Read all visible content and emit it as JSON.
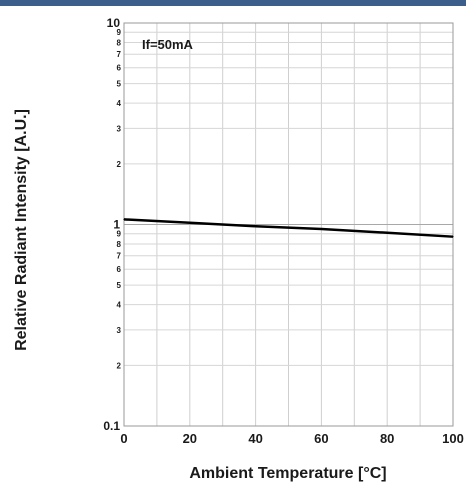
{
  "header_bar_color": "#3b5f8a",
  "chart_data": {
    "type": "line",
    "title": "",
    "xlabel": "Ambient Temperature [°C]",
    "ylabel": "Relative Radiant Intensity [A.U.]",
    "annotation": "If=50mA",
    "x_scale": "linear",
    "y_scale": "log",
    "xlim": [
      0,
      100
    ],
    "ylim": [
      0.1,
      10
    ],
    "grid": true,
    "x_ticks": [
      0,
      20,
      40,
      60,
      80,
      100
    ],
    "x_tick_labels": [
      "0",
      "20",
      "40",
      "60",
      "80",
      "100"
    ],
    "y_major_ticks": [
      0.1,
      1,
      10
    ],
    "y_major_labels": [
      "0.1",
      "1",
      "10"
    ],
    "y_minor_ticks": [
      0.2,
      0.3,
      0.4,
      0.5,
      0.6,
      0.7,
      0.8,
      0.9,
      2,
      3,
      4,
      5,
      6,
      7,
      8,
      9
    ],
    "y_minor_labels": [
      "2",
      "3",
      "4",
      "5",
      "6",
      "7",
      "8",
      "9",
      "2",
      "3",
      "4",
      "5",
      "6",
      "7",
      "8",
      "9"
    ],
    "series": [
      {
        "color": "#000000",
        "x": [
          0,
          20,
          40,
          60,
          80,
          100
        ],
        "y": [
          1.06,
          1.02,
          0.98,
          0.95,
          0.91,
          0.87
        ]
      }
    ]
  }
}
